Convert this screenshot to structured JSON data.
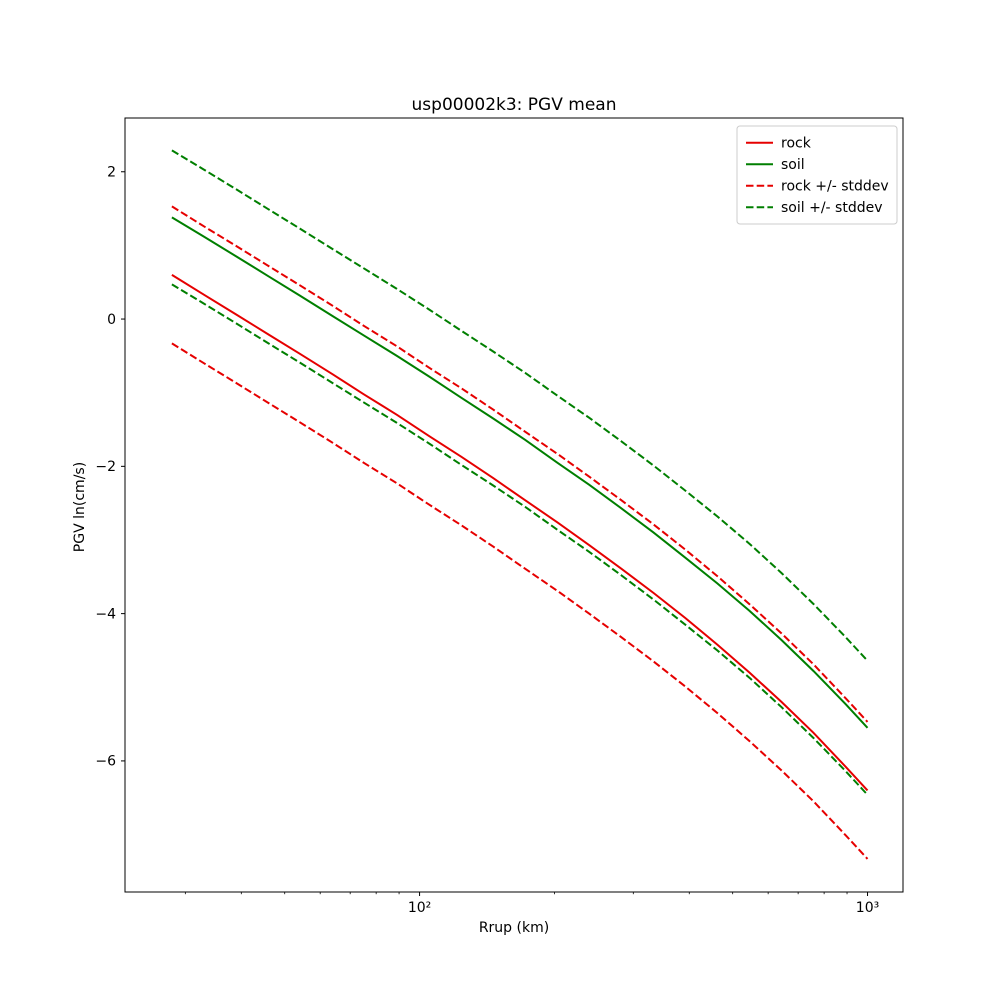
{
  "chart_data": {
    "type": "line",
    "title": "usp00002k3: PGV mean",
    "xlabel": "Rrup (km)",
    "ylabel": "PGV ln(cm/s)",
    "xscale": "log",
    "yscale": "linear",
    "xlim": [
      22,
      1200
    ],
    "ylim": [
      -7.78,
      2.73
    ],
    "grid": false,
    "legend_position": "upper right",
    "colors": {
      "rock": "#e60000",
      "soil": "#007f00",
      "background": "#ffffff",
      "axes": "#000000",
      "legend_border": "#cccccc"
    },
    "x": [
      28,
      33,
      39,
      46,
      54,
      64,
      75,
      89,
      105,
      124,
      146,
      172,
      203,
      239,
      282,
      333,
      392,
      462,
      545,
      643,
      758,
      894,
      1000
    ],
    "series": [
      {
        "name": "rock",
        "color": "#e60000",
        "style": "solid",
        "values": [
          0.6,
          0.33,
          0.06,
          -0.21,
          -0.47,
          -0.75,
          -1.02,
          -1.3,
          -1.59,
          -1.87,
          -2.16,
          -2.46,
          -2.76,
          -3.07,
          -3.39,
          -3.72,
          -4.06,
          -4.42,
          -4.8,
          -5.2,
          -5.62,
          -6.08,
          -6.4
        ]
      },
      {
        "name": "soil",
        "color": "#007f00",
        "style": "solid",
        "values": [
          1.38,
          1.12,
          0.85,
          0.58,
          0.32,
          0.04,
          -0.22,
          -0.5,
          -0.78,
          -1.07,
          -1.35,
          -1.64,
          -1.95,
          -2.25,
          -2.57,
          -2.9,
          -3.24,
          -3.59,
          -3.96,
          -4.36,
          -4.78,
          -5.23,
          -5.55
        ]
      },
      {
        "name": "rock + stddev",
        "color": "#e60000",
        "style": "dashed",
        "values": [
          1.53,
          1.26,
          0.99,
          0.72,
          0.46,
          0.18,
          -0.09,
          -0.37,
          -0.66,
          -0.94,
          -1.23,
          -1.53,
          -1.83,
          -2.14,
          -2.46,
          -2.79,
          -3.13,
          -3.49,
          -3.87,
          -4.27,
          -4.69,
          -5.15,
          -5.47
        ]
      },
      {
        "name": "rock - stddev",
        "color": "#e60000",
        "style": "dashed",
        "values": [
          -0.33,
          -0.6,
          -0.87,
          -1.14,
          -1.4,
          -1.68,
          -1.95,
          -2.23,
          -2.52,
          -2.8,
          -3.09,
          -3.39,
          -3.69,
          -4.0,
          -4.32,
          -4.65,
          -4.99,
          -5.35,
          -5.73,
          -6.13,
          -6.55,
          -7.01,
          -7.33
        ]
      },
      {
        "name": "soil + stddev",
        "color": "#007f00",
        "style": "dashed",
        "values": [
          2.29,
          2.03,
          1.76,
          1.49,
          1.23,
          0.95,
          0.69,
          0.41,
          0.13,
          -0.16,
          -0.44,
          -0.73,
          -1.04,
          -1.34,
          -1.66,
          -1.99,
          -2.33,
          -2.68,
          -3.05,
          -3.45,
          -3.87,
          -4.32,
          -4.64
        ]
      },
      {
        "name": "soil - stddev",
        "color": "#007f00",
        "style": "dashed",
        "values": [
          0.47,
          0.21,
          -0.06,
          -0.33,
          -0.59,
          -0.87,
          -1.13,
          -1.41,
          -1.69,
          -1.98,
          -2.26,
          -2.55,
          -2.86,
          -3.16,
          -3.48,
          -3.81,
          -4.15,
          -4.5,
          -4.87,
          -5.27,
          -5.69,
          -6.14,
          -6.46
        ]
      }
    ],
    "legend": [
      {
        "label": "rock",
        "color": "#e60000",
        "style": "solid"
      },
      {
        "label": "soil",
        "color": "#007f00",
        "style": "solid"
      },
      {
        "label": "rock +/- stddev",
        "color": "#e60000",
        "style": "dashed"
      },
      {
        "label": "soil +/- stddev",
        "color": "#007f00",
        "style": "dashed"
      }
    ],
    "xticks": [
      {
        "value": 100,
        "label": "10²"
      },
      {
        "value": 1000,
        "label": "10³"
      }
    ],
    "x_minor_ticks": [
      30,
      40,
      50,
      60,
      70,
      80,
      90,
      200,
      300,
      400,
      500,
      600,
      700,
      800,
      900
    ],
    "yticks": [
      {
        "value": 2,
        "label": "2"
      },
      {
        "value": 0,
        "label": "0"
      },
      {
        "value": -2,
        "label": "−2"
      },
      {
        "value": -4,
        "label": "−4"
      },
      {
        "value": -6,
        "label": "−6"
      }
    ]
  }
}
